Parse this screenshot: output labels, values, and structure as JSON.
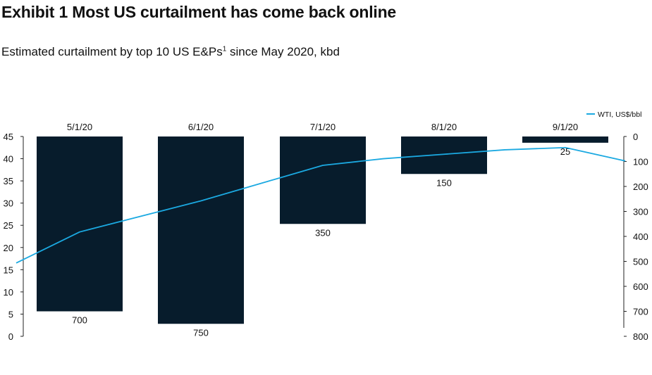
{
  "title": "Exhibit 1 Most US curtailment has come back online",
  "subtitle": "Estimated curtailment by top 10 US E&Ps",
  "subtitle_sup": "1",
  "subtitle_suffix": " since May 2020, kbd",
  "chart_data": {
    "type": "bar",
    "categories": [
      "5/1/20",
      "6/1/20",
      "7/1/20",
      "8/1/20",
      "9/1/20"
    ],
    "series": [
      {
        "values": [
          700,
          750,
          350,
          150,
          25
        ],
        "color": "#071c2c",
        "axis": "right",
        "data_labels": [
          "700",
          "750",
          "350",
          "150",
          "25"
        ]
      },
      {
        "name": "WTI, US$/bbl",
        "type": "line",
        "axis": "left",
        "color": "#1ba9e1",
        "x": [
          "start",
          "5/1/20",
          "6/1/20",
          "6/16/20",
          "7/1/20",
          "7/16/20",
          "8/1/20",
          "8/16/20",
          "9/1/20",
          "end"
        ],
        "values": [
          16.5,
          23.5,
          30.5,
          34.5,
          38.5,
          40.0,
          41.0,
          42.0,
          42.5,
          39.5
        ]
      }
    ],
    "y_left": {
      "lim": [
        0,
        45
      ],
      "ticks": [
        "0",
        "5",
        "10",
        "15",
        "20",
        "25",
        "30",
        "35",
        "40",
        "45"
      ]
    },
    "y_right": {
      "lim": [
        0,
        800
      ],
      "inverted": true,
      "ticks": [
        "0",
        "100",
        "200",
        "300",
        "400",
        "500",
        "600",
        "700",
        "800"
      ]
    },
    "legend": {
      "position": "top-right",
      "label": "WTI, US$/bbl"
    },
    "grid": false
  }
}
